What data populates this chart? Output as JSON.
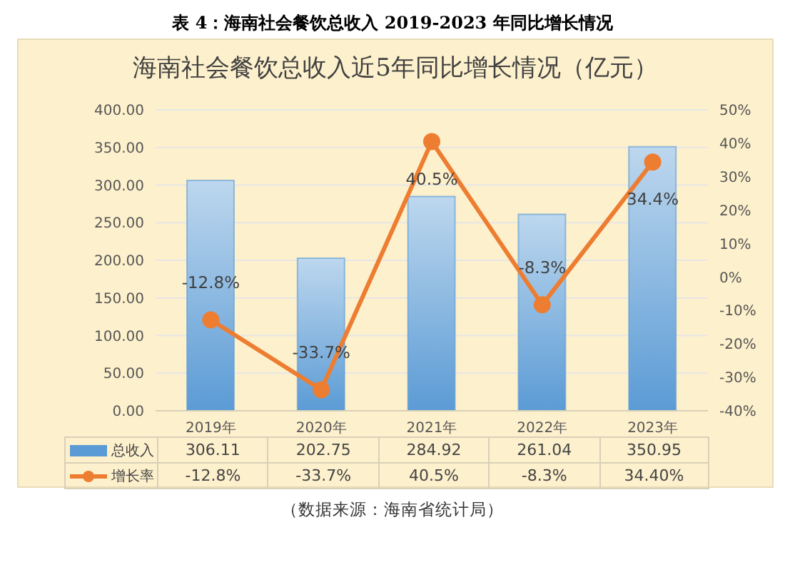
{
  "chart_data": {
    "type": "bar",
    "title": "海南社会餐饮总收入近5年同比增长情况（亿元）",
    "subtitle": "表 4：海南社会餐饮总收入 2019-2023 年同比增长情况",
    "categories": [
      "2019年",
      "2020年",
      "2021年",
      "2022年",
      "2023年"
    ],
    "series": [
      {
        "name": "总收入",
        "color": "#5b9bd5",
        "values": [
          306.11,
          202.75,
          284.92,
          261.04,
          350.95
        ],
        "value_labels": [
          "306.11",
          "202.75",
          "284.92",
          "261.04",
          "350.95"
        ]
      },
      {
        "name": "增长率",
        "type": "line",
        "axis": "y2",
        "color": "#ed7d31",
        "marker": "circle",
        "values": [
          -12.8,
          -33.7,
          40.5,
          -8.3,
          34.4
        ],
        "value_labels": [
          "-12.8%",
          "-33.7%",
          "40.5%",
          "-8.3%",
          "34.40%"
        ]
      }
    ],
    "ylim": [
      0,
      400
    ],
    "yticks": [
      {
        "value": 0,
        "label": "0.00"
      },
      {
        "value": 50,
        "label": "50.00"
      },
      {
        "value": 100,
        "label": "100.00"
      },
      {
        "value": 150,
        "label": "150.00"
      },
      {
        "value": 200,
        "label": "200.00"
      },
      {
        "value": 250,
        "label": "250.00"
      },
      {
        "value": 300,
        "label": "300.00"
      },
      {
        "value": 350,
        "label": "350.00"
      },
      {
        "value": 400,
        "label": "400.00"
      }
    ],
    "y2lim": [
      -40,
      50
    ],
    "y2ticks": [
      {
        "value": -40,
        "label": "-40%"
      },
      {
        "value": -30,
        "label": "-30%"
      },
      {
        "value": -20,
        "label": "-20%"
      },
      {
        "value": -10,
        "label": "-10%"
      },
      {
        "value": 0,
        "label": "0%"
      },
      {
        "value": 10,
        "label": "10%"
      },
      {
        "value": 20,
        "label": "20%"
      },
      {
        "value": 30,
        "label": "30%"
      },
      {
        "value": 40,
        "label": "40%"
      },
      {
        "value": 50,
        "label": "50%"
      }
    ],
    "grid": "y",
    "legend": "bottom",
    "annotations": [
      "-12.8%",
      "-33.7%",
      "40.5%",
      "-8.3%",
      "34.4%",
      "（数据来源：海南省统计局）"
    ]
  }
}
